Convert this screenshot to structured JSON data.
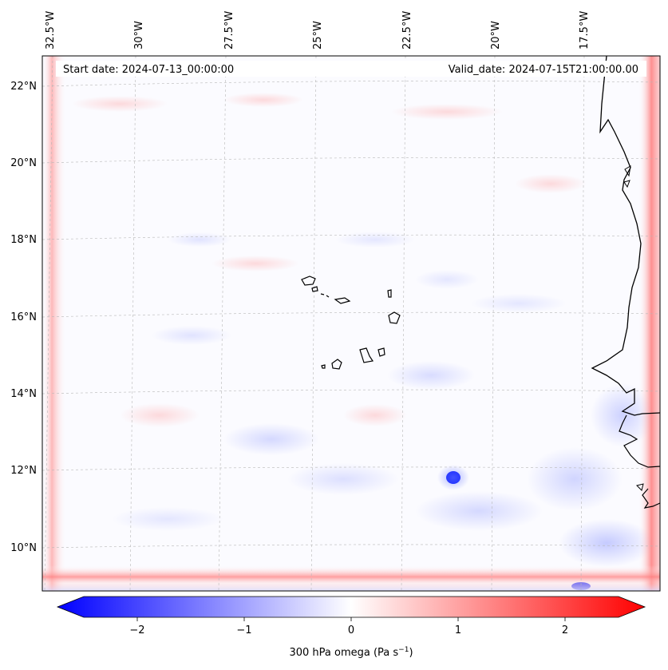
{
  "header": {
    "start_date": "Start date: 2024-07-13_00:00:00",
    "valid_date": "Valid_date: 2024-07-15T21:00:00.00"
  },
  "longitude_labels": [
    "32.5°W",
    "30°W",
    "27.5°W",
    "25°W",
    "22.5°W",
    "20°W",
    "17.5°W"
  ],
  "latitude_labels": [
    "22°N",
    "20°N",
    "18°N",
    "16°N",
    "14°N",
    "12°N",
    "10°N"
  ],
  "colorbar": {
    "tick_labels": [
      "−2",
      "−1",
      "0",
      "1",
      "2"
    ],
    "tick_values": [
      -2,
      -1,
      0,
      1,
      2
    ],
    "range": [
      -2.5,
      2.5
    ],
    "label": "300 hPa omega (Pa s",
    "label_exponent": "−1",
    "label_suffix": ")",
    "colors": {
      "min": "#0000ff",
      "mid": "#ffffff",
      "max": "#ff0000"
    }
  },
  "map": {
    "lon_range": [
      -33,
      -15
    ],
    "lat_range": [
      9,
      23
    ],
    "features": [
      "coastline-africa",
      "cape-verde-islands"
    ]
  }
}
